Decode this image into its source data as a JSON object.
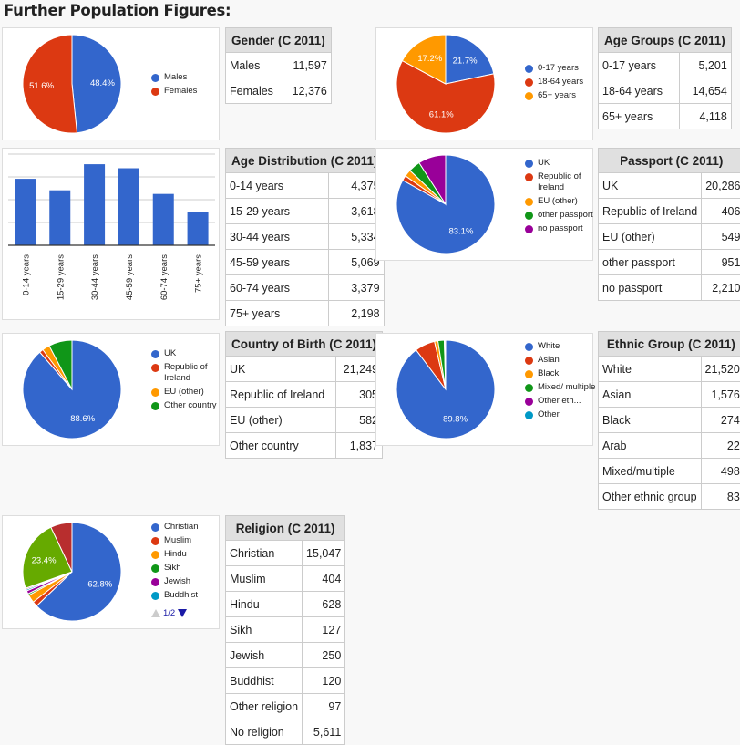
{
  "page_title": "Further Population Figures:",
  "palette": [
    "#3366cc",
    "#dc3912",
    "#ff9900",
    "#109618",
    "#990099",
    "#0099c6",
    "#dd4477",
    "#66aa00",
    "#b82e2e"
  ],
  "sections": [
    {
      "table": {
        "title": "Gender (C 2011)",
        "rows": [
          {
            "label": "Males",
            "value": "11,597"
          },
          {
            "label": "Females",
            "value": "12,376"
          }
        ]
      }
    },
    {
      "table": {
        "title": "Age Groups (C 2011)",
        "rows": [
          {
            "label": "0-17 years",
            "value": "5,201"
          },
          {
            "label": "18-64 years",
            "value": "14,654"
          },
          {
            "label": "65+ years",
            "value": "4,118"
          }
        ]
      }
    },
    {
      "table": {
        "title": "Age Distribution (C 2011)",
        "rows": [
          {
            "label": "0-14 years",
            "value": "4,375"
          },
          {
            "label": "15-29 years",
            "value": "3,618"
          },
          {
            "label": "30-44 years",
            "value": "5,334"
          },
          {
            "label": "45-59 years",
            "value": "5,069"
          },
          {
            "label": "60-74 years",
            "value": "3,379"
          },
          {
            "label": "75+ years",
            "value": "2,198"
          }
        ]
      }
    },
    {
      "table": {
        "title": "Passport (C 2011)",
        "rows": [
          {
            "label": "UK",
            "value": "20,286"
          },
          {
            "label": "Republic of Ireland",
            "value": "406"
          },
          {
            "label": "EU (other)",
            "value": "549"
          },
          {
            "label": "other passport",
            "value": "951"
          },
          {
            "label": "no passport",
            "value": "2,210"
          }
        ]
      }
    },
    {
      "table": {
        "title": "Country of Birth (C 2011)",
        "rows": [
          {
            "label": "UK",
            "value": "21,249"
          },
          {
            "label": "Republic of Ireland",
            "value": "305"
          },
          {
            "label": "EU (other)",
            "value": "582"
          },
          {
            "label": "Other country",
            "value": "1,837"
          }
        ]
      }
    },
    {
      "table": {
        "title": "Ethnic Group (C 2011)",
        "rows": [
          {
            "label": "White",
            "value": "21,520"
          },
          {
            "label": "Asian",
            "value": "1,576"
          },
          {
            "label": "Black",
            "value": "274"
          },
          {
            "label": "Arab",
            "value": "22"
          },
          {
            "label": "Mixed/multiple",
            "value": "498"
          },
          {
            "label": "Other ethnic group",
            "value": "83"
          }
        ]
      }
    },
    {
      "table": {
        "title": "Religion (C 2011)",
        "rows": [
          {
            "label": "Christian",
            "value": "15,047"
          },
          {
            "label": "Muslim",
            "value": "404"
          },
          {
            "label": "Hindu",
            "value": "628"
          },
          {
            "label": "Sikh",
            "value": "127"
          },
          {
            "label": "Jewish",
            "value": "250"
          },
          {
            "label": "Buddhist",
            "value": "120"
          },
          {
            "label": "Other religion",
            "value": "97"
          },
          {
            "label": "No religion",
            "value": "5,611"
          }
        ]
      }
    }
  ],
  "chart_data": [
    {
      "type": "pie",
      "legend": [
        "Males",
        "Females"
      ],
      "values": [
        11597,
        12376
      ],
      "legend_position": "right"
    },
    {
      "type": "pie",
      "legend": [
        "0-17 years",
        "18-64 years",
        "65+ years"
      ],
      "values": [
        5201,
        14654,
        4118
      ],
      "legend_position": "right"
    },
    {
      "type": "bar",
      "categories": [
        "0-14 years",
        "15-29 years",
        "30-44 years",
        "45-59 years",
        "60-74 years",
        "75+ years"
      ],
      "values": [
        4375,
        3618,
        5334,
        5069,
        3379,
        2198
      ],
      "ylim": [
        0,
        6000
      ],
      "grid": true,
      "legend_position": "none"
    },
    {
      "type": "pie",
      "legend": [
        "UK",
        "Republic of Ireland",
        "EU (other)",
        "other passport",
        "no passport"
      ],
      "values": [
        20286,
        406,
        549,
        951,
        2210
      ],
      "legend_position": "right"
    },
    {
      "type": "pie",
      "legend": [
        "UK",
        "Republic of Ireland",
        "EU (other)",
        "Other country"
      ],
      "values": [
        21249,
        305,
        582,
        1837
      ],
      "legend_position": "right"
    },
    {
      "type": "pie",
      "legend": [
        "White",
        "Asian",
        "Black",
        "Mixed/ multiple",
        "Other eth...",
        "Other"
      ],
      "values": [
        21520,
        1576,
        274,
        498,
        83,
        22
      ],
      "legend_position": "right"
    },
    {
      "type": "pie",
      "legend": [
        "Christian",
        "Muslim",
        "Hindu",
        "Sikh",
        "Jewish",
        "Buddhist"
      ],
      "values": [
        15047,
        404,
        628,
        127,
        250,
        120,
        97,
        5611,
        1690
      ],
      "legend_position": "right",
      "legend_pager": "1/2"
    }
  ]
}
